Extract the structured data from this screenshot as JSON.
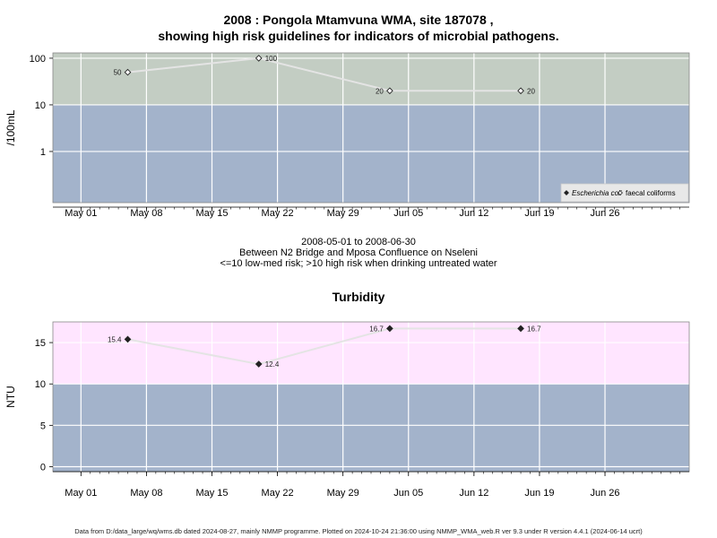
{
  "title_line1": "2008 : Pongola Mtamvuna WMA, site 187078 ,",
  "title_line2": "showing high risk guidelines for indicators of microbial pathogens.",
  "subtitle_line1": "2008-05-01 to 2008-06-30",
  "subtitle_line2": "Between N2 Bridge and Mposa Confluence on Nseleni",
  "subtitle_line3": "<=10 low-med risk; >10 high risk when drinking untreated water",
  "turbidity_title": "Turbidity",
  "footer": "Data from D:/data_large/wq/wms.db dated 2024-08-27, mainly NMMP programme. Plotted on 2024-10-24 21:36:00 using NMMP_WMA_web.R ver 9.3 under R version 4.4.1 (2024-06-14 ucrt)",
  "colors": {
    "high_risk_band": "#c3cdc3",
    "low_risk_band": "#a3b3cb",
    "turbidity_high_band": "#ffe5ff",
    "series_line": "#e4e4e4",
    "grid": "#ffffff"
  },
  "chart_data": [
    {
      "type": "line",
      "name": "microbial",
      "x_axis": {
        "type": "date",
        "range": [
          "2008-04-28",
          "2008-07-05"
        ],
        "tick_labels": [
          "May 01",
          "May 08",
          "May 15",
          "May 22",
          "May 29",
          "Jun 05",
          "Jun 12",
          "Jun 19",
          "Jun 26"
        ],
        "tick_dates": [
          "2008-05-01",
          "2008-05-08",
          "2008-05-15",
          "2008-05-22",
          "2008-05-29",
          "2008-06-05",
          "2008-06-12",
          "2008-06-19",
          "2008-06-26"
        ]
      },
      "y_axis": {
        "scale": "log",
        "label": "/100mL",
        "ticks": [
          1,
          10,
          100
        ],
        "tick_labels": [
          "1",
          "10",
          "100"
        ]
      },
      "bands": [
        {
          "from": 10,
          "to": 130,
          "color": "#c3cdc3"
        },
        {
          "from": 0.08,
          "to": 10,
          "color": "#a3b3cb"
        }
      ],
      "legend": {
        "position": "bottom-right",
        "entries": [
          {
            "label": "Escherichia coli",
            "marker": "filled-diamond"
          },
          {
            "label": "faecal coliforms",
            "marker": "open-diamond"
          }
        ]
      },
      "grid": true,
      "series": [
        {
          "name": "faecal coliforms",
          "marker": "open-diamond",
          "x": [
            "2008-05-06",
            "2008-05-20",
            "2008-06-03",
            "2008-06-17"
          ],
          "y": [
            50,
            100,
            20,
            20
          ],
          "labels": [
            "50",
            "100",
            "20",
            "20"
          ],
          "label_side": [
            "left",
            "right",
            "left",
            "right"
          ]
        }
      ]
    },
    {
      "type": "line",
      "name": "turbidity",
      "x_axis": {
        "type": "date",
        "range": [
          "2008-04-28",
          "2008-07-05"
        ],
        "tick_labels": [
          "May 01",
          "May 08",
          "May 15",
          "May 22",
          "May 29",
          "Jun 05",
          "Jun 12",
          "Jun 19",
          "Jun 26"
        ],
        "tick_dates": [
          "2008-05-01",
          "2008-05-08",
          "2008-05-15",
          "2008-05-22",
          "2008-05-29",
          "2008-06-05",
          "2008-06-12",
          "2008-06-19",
          "2008-06-26"
        ]
      },
      "y_axis": {
        "scale": "linear",
        "label": "NTU",
        "range": [
          -0.6,
          17.5
        ],
        "ticks": [
          0,
          5,
          10,
          15
        ],
        "tick_labels": [
          "0",
          "5",
          "10",
          "15"
        ]
      },
      "bands": [
        {
          "from": 10,
          "to": 17.5,
          "color": "#ffe5ff"
        },
        {
          "from": -0.6,
          "to": 10,
          "color": "#a3b3cb"
        }
      ],
      "grid": true,
      "series": [
        {
          "name": "turbidity",
          "marker": "filled-diamond",
          "x": [
            "2008-05-06",
            "2008-05-20",
            "2008-06-03",
            "2008-06-17"
          ],
          "y": [
            15.4,
            12.4,
            16.7,
            16.7
          ],
          "labels": [
            "15.4",
            "12.4",
            "16.7",
            "16.7"
          ],
          "label_side": [
            "left",
            "right",
            "left",
            "right"
          ]
        }
      ]
    }
  ]
}
